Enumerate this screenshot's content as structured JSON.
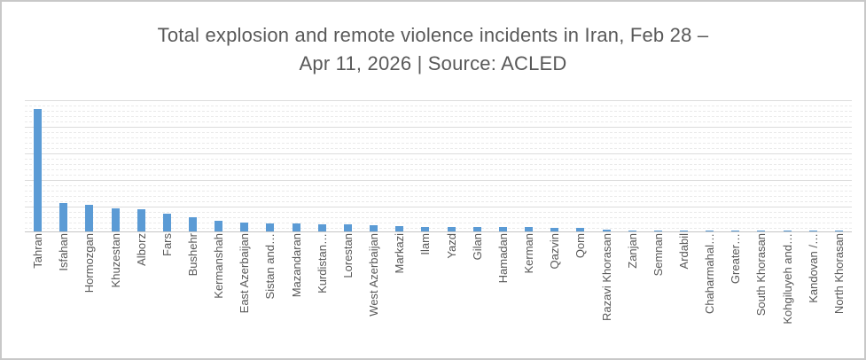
{
  "chart": {
    "title_lines": [
      "Total explosion and remote violence incidents in Iran, Feb 28 –",
      "Apr 11, 2026 | Source: ACLED"
    ]
  },
  "chart_data": {
    "type": "bar",
    "title": "Total explosion and remote violence incidents in Iran, Feb 28 – Apr 11, 2026 | Source: ACLED",
    "xlabel": "",
    "ylabel": "",
    "legend": "none",
    "y_axis_tick_labels": "none",
    "grid": "horizontal, dashed minor lines with solid major lines",
    "ylim": [
      0,
      225
    ],
    "bar_color": "#5B9BD5",
    "categories": [
      "Tahran",
      "Isfahan",
      "Hormozgan",
      "Khuzestan",
      "Alborz",
      "Fars",
      "Bushehr",
      "Kermanshah",
      "East Azerbaijan",
      "Sistan and…",
      "Mazandaran",
      "Kurdistan…",
      "Lorestan",
      "West Azerbaijan",
      "Markazi",
      "Ilam",
      "Yazd",
      "Gilan",
      "Hamadan",
      "Kerman",
      "Qazvin",
      "Qom",
      "Razavi Khorasan",
      "Zanjan",
      "Semnan",
      "Ardabil",
      "Chaharmahal…",
      "Greater…",
      "South Khorasan",
      "Kohgiluyeh and…",
      "Kandovan /…",
      "North Khorasan"
    ],
    "values": [
      210,
      49,
      45,
      40,
      38,
      30,
      25,
      19,
      16,
      14,
      13,
      12,
      12,
      11,
      9,
      8,
      8,
      7,
      7,
      7,
      6,
      6,
      3,
      2,
      2,
      2,
      2,
      2,
      2,
      1,
      1,
      1
    ]
  },
  "colors": {
    "bar": "#5B9BD5",
    "text": "#595959",
    "grid_minor": "#EAEAEA",
    "grid_major": "#DCDCDC",
    "axis": "#C6C6C6",
    "frame_border": "#C8C8C8",
    "background": "#FFFFFF"
  }
}
